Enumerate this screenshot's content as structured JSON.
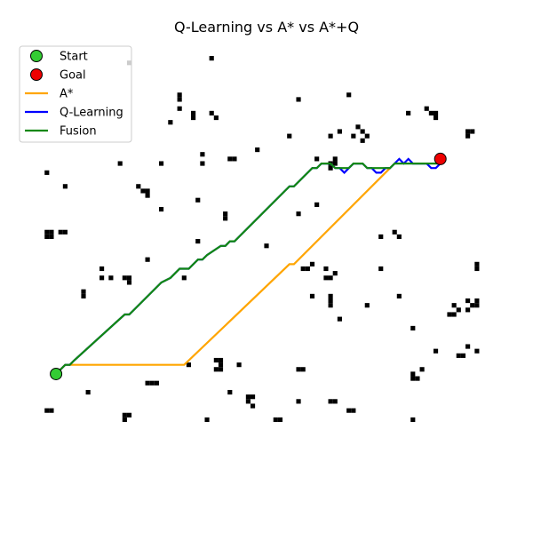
{
  "chart_data": {
    "type": "line",
    "title": "Q-Learning vs A* vs A*+Q",
    "xlabel": "",
    "ylabel": "",
    "xlim": [
      0,
      100
    ],
    "ylim": [
      0,
      100
    ],
    "axes_visible": false,
    "grid": false,
    "legend_position": "top-left",
    "obstacle_color": "#000000",
    "obstacles": [
      [
        20,
        95
      ],
      [
        38,
        96
      ],
      [
        31,
        88
      ],
      [
        31,
        87
      ],
      [
        57,
        87
      ],
      [
        68,
        88
      ],
      [
        31,
        85
      ],
      [
        34,
        84
      ],
      [
        38,
        84
      ],
      [
        34,
        83
      ],
      [
        39,
        83
      ],
      [
        29,
        82
      ],
      [
        81,
        84
      ],
      [
        85,
        85
      ],
      [
        86,
        84
      ],
      [
        87,
        84
      ],
      [
        87,
        83
      ],
      [
        70,
        81
      ],
      [
        55,
        79
      ],
      [
        64,
        79
      ],
      [
        71,
        80
      ],
      [
        69,
        79
      ],
      [
        72,
        79
      ],
      [
        71,
        78
      ],
      [
        66,
        80
      ],
      [
        94,
        79
      ],
      [
        95,
        80
      ],
      [
        94,
        80
      ],
      [
        48,
        76
      ],
      [
        36,
        75
      ],
      [
        61,
        74
      ],
      [
        65,
        74
      ],
      [
        64,
        73
      ],
      [
        65,
        73
      ],
      [
        64,
        72
      ],
      [
        18,
        73
      ],
      [
        27,
        73
      ],
      [
        42,
        74
      ],
      [
        43,
        74
      ],
      [
        36,
        73
      ],
      [
        2,
        71
      ],
      [
        6,
        68
      ],
      [
        22,
        68
      ],
      [
        23,
        67
      ],
      [
        24,
        67
      ],
      [
        24,
        66
      ],
      [
        35,
        65
      ],
      [
        27,
        63
      ],
      [
        61,
        64
      ],
      [
        57,
        62
      ],
      [
        41,
        62
      ],
      [
        41,
        61
      ],
      [
        2,
        58
      ],
      [
        3,
        58
      ],
      [
        6,
        58
      ],
      [
        5,
        58
      ],
      [
        2,
        57
      ],
      [
        3,
        57
      ],
      [
        35,
        56
      ],
      [
        50,
        55
      ],
      [
        75,
        57
      ],
      [
        78,
        58
      ],
      [
        79,
        57
      ],
      [
        24,
        52
      ],
      [
        60,
        51
      ],
      [
        58,
        50
      ],
      [
        59,
        50
      ],
      [
        63,
        50
      ],
      [
        65,
        49
      ],
      [
        63,
        48
      ],
      [
        64,
        48
      ],
      [
        14,
        50
      ],
      [
        14,
        48
      ],
      [
        16,
        48
      ],
      [
        19,
        48
      ],
      [
        20,
        48
      ],
      [
        20,
        47
      ],
      [
        32,
        48
      ],
      [
        75,
        50
      ],
      [
        96,
        51
      ],
      [
        96,
        50
      ],
      [
        10,
        45
      ],
      [
        10,
        44
      ],
      [
        60,
        44
      ],
      [
        64,
        44
      ],
      [
        64,
        42
      ],
      [
        64,
        43
      ],
      [
        72,
        42
      ],
      [
        79,
        44
      ],
      [
        82,
        37
      ],
      [
        94,
        43
      ],
      [
        96,
        43
      ],
      [
        95,
        42
      ],
      [
        91,
        42
      ],
      [
        96,
        42
      ],
      [
        94,
        41
      ],
      [
        92,
        41
      ],
      [
        91,
        40
      ],
      [
        90,
        40
      ],
      [
        66,
        39
      ],
      [
        87,
        32
      ],
      [
        92,
        31
      ],
      [
        93,
        31
      ],
      [
        96,
        32
      ],
      [
        94,
        33
      ],
      [
        39,
        30
      ],
      [
        40,
        30
      ],
      [
        40,
        29
      ],
      [
        39,
        28
      ],
      [
        40,
        28
      ],
      [
        33,
        29
      ],
      [
        44,
        29
      ],
      [
        57,
        28
      ],
      [
        58,
        28
      ],
      [
        84,
        28
      ],
      [
        82,
        27
      ],
      [
        83,
        26
      ],
      [
        82,
        26
      ],
      [
        24,
        25
      ],
      [
        25,
        25
      ],
      [
        26,
        25
      ],
      [
        11,
        23
      ],
      [
        42,
        23
      ],
      [
        46,
        22
      ],
      [
        47,
        22
      ],
      [
        46,
        21
      ],
      [
        47,
        20
      ],
      [
        57,
        21
      ],
      [
        2,
        19
      ],
      [
        3,
        19
      ],
      [
        19,
        18
      ],
      [
        20,
        18
      ],
      [
        19,
        17
      ],
      [
        37,
        17
      ],
      [
        52,
        17
      ],
      [
        53,
        17
      ],
      [
        64,
        21
      ],
      [
        65,
        21
      ],
      [
        68,
        19
      ],
      [
        69,
        19
      ],
      [
        82,
        17
      ]
    ],
    "start": {
      "label": "Start",
      "x": 4,
      "y": 27,
      "color": "#33cc33"
    },
    "goal": {
      "label": "Goal",
      "x": 88,
      "y": 74,
      "color": "#ee0000"
    },
    "series": [
      {
        "name": "A*",
        "color": "#ffa500",
        "x": [
          4,
          6,
          32,
          55,
          56,
          77
        ],
        "y": [
          27,
          29,
          29,
          51,
          51,
          72
        ]
      },
      {
        "name": "Q-Learning",
        "color": "#0000ff",
        "x": [
          4,
          6,
          7,
          8,
          19,
          20,
          21,
          27,
          29,
          30,
          31,
          33,
          35,
          36,
          37,
          40,
          41,
          42,
          43,
          44,
          54,
          55,
          56,
          60,
          61,
          62,
          63,
          64,
          65,
          66,
          67,
          68,
          69,
          70,
          71,
          72,
          73,
          74,
          75,
          76,
          77,
          78,
          79,
          80,
          81,
          82,
          83,
          84,
          85,
          86,
          87,
          88
        ],
        "y": [
          27,
          29,
          29,
          30,
          40,
          40,
          41,
          47,
          48,
          49,
          50,
          50,
          52,
          52,
          53,
          55,
          55,
          56,
          56,
          57,
          67,
          68,
          68,
          72,
          72,
          73,
          73,
          73,
          72,
          72,
          71,
          72,
          73,
          73,
          73,
          72,
          72,
          71,
          71,
          72,
          72,
          73,
          74,
          73,
          74,
          73,
          73,
          73,
          73,
          72,
          72,
          73
        ]
      },
      {
        "name": "Fusion",
        "color": "#118811",
        "x": [
          4,
          6,
          7,
          8,
          19,
          20,
          21,
          27,
          29,
          30,
          31,
          33,
          35,
          36,
          37,
          40,
          41,
          42,
          43,
          44,
          54,
          55,
          56,
          60,
          61,
          62,
          63,
          64,
          65,
          66,
          67,
          68,
          69,
          70,
          71,
          72,
          73,
          74,
          75,
          76,
          77,
          78,
          79,
          80,
          81,
          82,
          83,
          84,
          85,
          86,
          87,
          88
        ],
        "y": [
          27,
          29,
          29,
          30,
          40,
          40,
          41,
          47,
          48,
          49,
          50,
          50,
          52,
          52,
          53,
          55,
          55,
          56,
          56,
          57,
          67,
          68,
          68,
          72,
          72,
          73,
          73,
          73,
          72,
          72,
          72,
          72,
          73,
          73,
          73,
          72,
          72,
          72,
          72,
          72,
          72,
          73,
          73,
          73,
          73,
          73,
          73,
          73,
          73,
          73,
          73,
          73
        ]
      }
    ]
  }
}
